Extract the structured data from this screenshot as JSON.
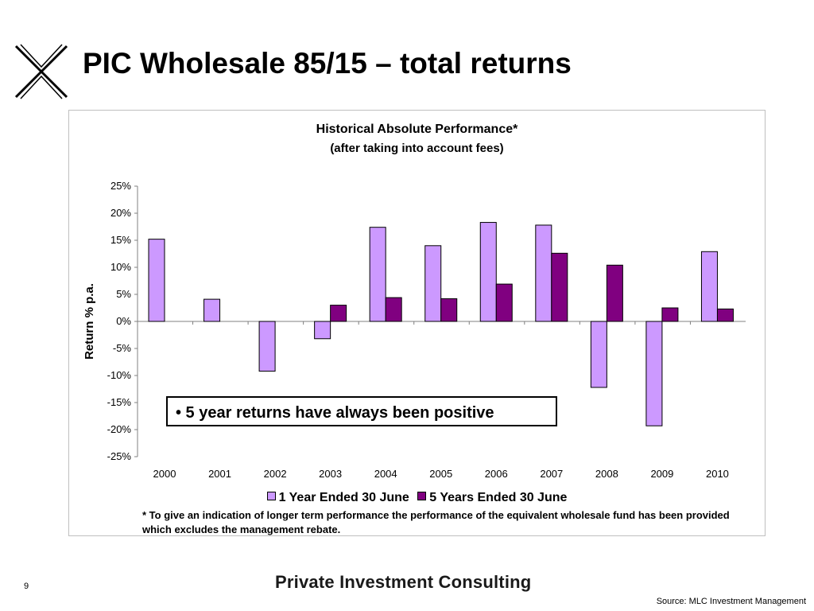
{
  "slide": {
    "title": "PIC Wholesale 85/15 – total returns",
    "page_number": "9",
    "brand": "Private Investment Consulting",
    "source": "Source: MLC Investment Management"
  },
  "callout": "• 5 year returns have always been positive",
  "footnote": "* To give an indication of longer term performance the performance of the equivalent wholesale fund has been provided which excludes the management rebate.",
  "chart_data": {
    "type": "bar",
    "title": "Historical Absolute Performance*",
    "subtitle": "(after taking into account fees)",
    "ylabel": "Return % p.a.",
    "xlabel": "",
    "ylim": [
      -25,
      25
    ],
    "yticks": [
      25,
      20,
      15,
      10,
      5,
      0,
      -5,
      -10,
      -15,
      -20,
      -25
    ],
    "ytick_labels": [
      "25%",
      "20%",
      "15%",
      "10%",
      "5%",
      "0%",
      "-5%",
      "-10%",
      "-15%",
      "-20%",
      "-25%"
    ],
    "categories": [
      "2000",
      "2001",
      "2002",
      "2003",
      "2004",
      "2005",
      "2006",
      "2007",
      "2008",
      "2009",
      "2010"
    ],
    "series": [
      {
        "name": "1 Year Ended 30 June",
        "color": "#cc99ff",
        "values": [
          15.2,
          4.1,
          -9.2,
          -3.2,
          17.4,
          14.0,
          18.3,
          17.8,
          -12.2,
          -19.3,
          12.9
        ]
      },
      {
        "name": "5 Years Ended 30 June",
        "color": "#800080",
        "values": [
          null,
          null,
          null,
          3.0,
          4.4,
          4.2,
          6.9,
          12.6,
          10.4,
          2.5,
          2.3
        ]
      }
    ],
    "grid": false,
    "legend_position": "bottom"
  }
}
